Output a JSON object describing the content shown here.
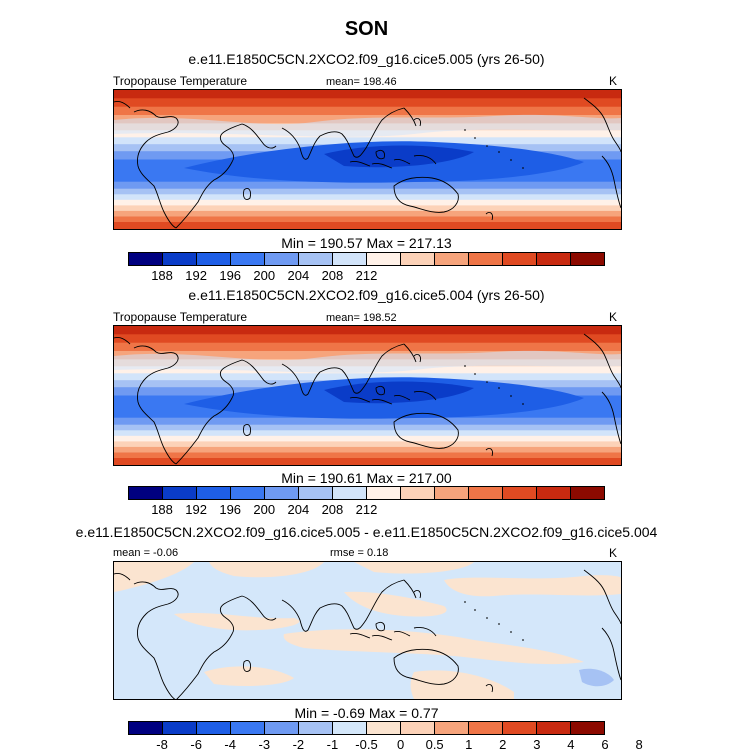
{
  "title": "SON",
  "palette_abs": [
    "#000080",
    "#0a3cc8",
    "#1e5ee6",
    "#3a78f2",
    "#6f9af2",
    "#a6c2f4",
    "#d2e4fa",
    "#fff1e8",
    "#fcd2b8",
    "#f6a47c",
    "#ef7547",
    "#e04a22",
    "#c82a10",
    "#8c0a00"
  ],
  "palette_diff": [
    "#000080",
    "#0a3cc8",
    "#1e5ee6",
    "#3a78f2",
    "#6f9af2",
    "#a6c2f4",
    "#d4e7fa",
    "#fbe4d0",
    "#fcd2b8",
    "#f6a47c",
    "#ef7547",
    "#e04a22",
    "#c82a10",
    "#8c0a00"
  ],
  "chart_data": [
    {
      "type": "heatmap",
      "panel": "top",
      "subtitle": "e.e11.E1850C5CN.2XCO2.f09_g16.cice5.005 (yrs 26-50)",
      "left_label": "Tropopause Temperature",
      "center_label": "mean= 198.46",
      "right_label": "K",
      "minmax": "Min = 190.57 Max = 217.13",
      "colorbar_ticks": [
        "188",
        "192",
        "196",
        "200",
        "204",
        "208",
        "212"
      ],
      "min": 190.57,
      "max": 217.13,
      "mean": 198.46
    },
    {
      "type": "heatmap",
      "panel": "middle",
      "subtitle": "e.e11.E1850C5CN.2XCO2.f09_g16.cice5.004 (yrs 26-50)",
      "left_label": "Tropopause Temperature",
      "center_label": "mean= 198.52",
      "right_label": "K",
      "minmax": "Min = 190.61 Max = 217.00",
      "colorbar_ticks": [
        "188",
        "192",
        "196",
        "200",
        "204",
        "208",
        "212"
      ],
      "min": 190.61,
      "max": 217.0,
      "mean": 198.52
    },
    {
      "type": "heatmap",
      "panel": "difference",
      "subtitle": "e.e11.E1850C5CN.2XCO2.f09_g16.cice5.005 - e.e11.E1850C5CN.2XCO2.f09_g16.cice5.004",
      "left_label": "mean =  -0.06",
      "center_label": "rmse =  0.18",
      "right_label": "K",
      "minmax": "Min =  -0.69 Max =   0.77",
      "colorbar_ticks": [
        "-8",
        "-6",
        "-4",
        "-3",
        "-2",
        "-1",
        "-0.5",
        "0",
        "0.5",
        "1",
        "2",
        "3",
        "4",
        "6",
        "8"
      ],
      "min": -0.69,
      "max": 0.77,
      "mean": -0.06,
      "rmse": 0.18
    }
  ]
}
